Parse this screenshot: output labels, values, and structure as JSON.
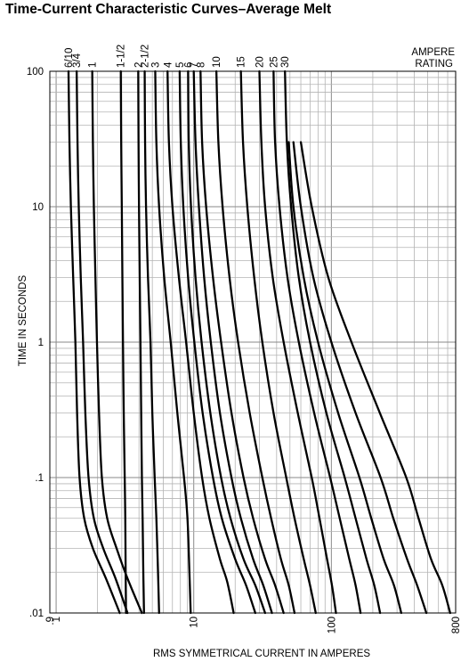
{
  "title": "Time-Current Characteristic Curves–Average Melt",
  "chart_data": {
    "type": "line",
    "title": "Time-Current Characteristic Curves–Average Melt",
    "xlabel": "RMS SYMMETRICAL CURRENT IN AMPERES",
    "ylabel": "TIME IN SECONDS",
    "legend_title": [
      "AMPERE",
      "RATING"
    ],
    "x_scale": "log",
    "y_scale": "log",
    "xlim": [
      0.9,
      800
    ],
    "ylim": [
      0.01,
      100
    ],
    "x_tick_labels": [
      {
        "value": 0.9,
        "label": ".9"
      },
      {
        "value": 1,
        "label": "1"
      },
      {
        "value": 10,
        "label": "10"
      },
      {
        "value": 100,
        "label": "100"
      },
      {
        "value": 800,
        "label": "800"
      }
    ],
    "y_tick_labels": [
      {
        "value": 100,
        "label": "100"
      },
      {
        "value": 10,
        "label": "10"
      },
      {
        "value": 1,
        "label": "1"
      },
      {
        "value": 0.1,
        "label": ".1"
      },
      {
        "value": 0.01,
        "label": ".01"
      }
    ],
    "grid": true,
    "series": [
      {
        "name": "6/10",
        "points": [
          [
            1.23,
            100
          ],
          [
            1.25,
            30
          ],
          [
            1.28,
            10
          ],
          [
            1.33,
            3
          ],
          [
            1.38,
            1
          ],
          [
            1.42,
            0.3
          ],
          [
            1.48,
            0.1
          ],
          [
            1.6,
            0.05
          ],
          [
            1.85,
            0.03
          ],
          [
            2.3,
            0.018
          ],
          [
            2.9,
            0.01
          ]
        ]
      },
      {
        "name": "3/4",
        "points": [
          [
            1.41,
            100
          ],
          [
            1.43,
            30
          ],
          [
            1.46,
            10
          ],
          [
            1.51,
            3
          ],
          [
            1.57,
            1
          ],
          [
            1.63,
            0.3
          ],
          [
            1.72,
            0.1
          ],
          [
            1.88,
            0.05
          ],
          [
            2.2,
            0.03
          ],
          [
            2.7,
            0.018
          ],
          [
            3.3,
            0.01
          ]
        ]
      },
      {
        "name": "1",
        "points": [
          [
            1.83,
            100
          ],
          [
            1.85,
            30
          ],
          [
            1.88,
            10
          ],
          [
            1.93,
            3
          ],
          [
            1.98,
            1
          ],
          [
            2.05,
            0.3
          ],
          [
            2.15,
            0.1
          ],
          [
            2.35,
            0.05
          ],
          [
            2.75,
            0.03
          ],
          [
            3.3,
            0.018
          ],
          [
            4.2,
            0.01
          ]
        ]
      },
      {
        "name": "1-1/2",
        "points": [
          [
            2.95,
            100
          ],
          [
            2.97,
            30
          ],
          [
            3.0,
            10
          ],
          [
            3.03,
            3
          ],
          [
            3.06,
            1
          ],
          [
            3.1,
            0.3
          ],
          [
            3.15,
            0.1
          ],
          [
            3.18,
            0.05
          ],
          [
            3.2,
            0.02
          ],
          [
            3.22,
            0.01
          ]
        ]
      },
      {
        "name": "2",
        "points": [
          [
            3.95,
            100
          ],
          [
            3.97,
            30
          ],
          [
            4.0,
            10
          ],
          [
            4.05,
            3
          ],
          [
            4.1,
            1
          ],
          [
            4.15,
            0.3
          ],
          [
            4.2,
            0.1
          ],
          [
            4.25,
            0.05
          ],
          [
            4.3,
            0.02
          ],
          [
            4.35,
            0.01
          ]
        ]
      },
      {
        "name": "2-1/2",
        "points": [
          [
            4.4,
            100
          ],
          [
            4.43,
            30
          ],
          [
            4.5,
            10
          ],
          [
            4.65,
            3
          ],
          [
            4.85,
            1
          ],
          [
            5.0,
            0.3
          ],
          [
            5.2,
            0.1
          ],
          [
            5.35,
            0.05
          ],
          [
            5.5,
            0.02
          ],
          [
            5.6,
            0.01
          ]
        ]
      },
      {
        "name": "3",
        "points": [
          [
            5.25,
            100
          ],
          [
            5.35,
            30
          ],
          [
            5.6,
            10
          ],
          [
            6.1,
            3
          ],
          [
            6.8,
            1
          ],
          [
            7.6,
            0.3
          ],
          [
            8.5,
            0.1
          ],
          [
            9.0,
            0.05
          ],
          [
            9.3,
            0.02
          ],
          [
            9.5,
            0.01
          ]
        ]
      },
      {
        "name": "4",
        "points": [
          [
            6.45,
            100
          ],
          [
            6.6,
            30
          ],
          [
            7.0,
            10
          ],
          [
            7.8,
            3
          ],
          [
            8.8,
            1
          ],
          [
            10.0,
            0.3
          ],
          [
            11.5,
            0.1
          ],
          [
            13.0,
            0.05
          ],
          [
            15.5,
            0.025
          ],
          [
            17.5,
            0.017
          ],
          [
            19.5,
            0.01
          ]
        ]
      },
      {
        "name": "5",
        "points": [
          [
            7.9,
            100
          ],
          [
            8.05,
            30
          ],
          [
            8.4,
            10
          ],
          [
            9.1,
            3
          ],
          [
            10.1,
            1
          ],
          [
            11.6,
            0.3
          ],
          [
            13.8,
            0.1
          ],
          [
            16.0,
            0.05
          ],
          [
            20.0,
            0.025
          ],
          [
            24.0,
            0.016
          ],
          [
            28.0,
            0.01
          ]
        ]
      },
      {
        "name": "6",
        "points": [
          [
            9.1,
            100
          ],
          [
            9.2,
            30
          ],
          [
            9.55,
            10
          ],
          [
            10.3,
            3
          ],
          [
            11.4,
            1
          ],
          [
            13.2,
            0.3
          ],
          [
            15.8,
            0.1
          ],
          [
            18.5,
            0.05
          ],
          [
            23.0,
            0.025
          ],
          [
            28.0,
            0.016
          ],
          [
            33.0,
            0.01
          ]
        ]
      },
      {
        "name": "7",
        "points": [
          [
            10.0,
            100
          ],
          [
            10.3,
            30
          ],
          [
            10.9,
            10
          ],
          [
            11.9,
            3
          ],
          [
            13.3,
            1
          ],
          [
            15.5,
            0.3
          ],
          [
            18.8,
            0.1
          ],
          [
            22.0,
            0.05
          ],
          [
            27.0,
            0.025
          ],
          [
            32.0,
            0.016
          ],
          [
            37.0,
            0.01
          ]
        ]
      },
      {
        "name": "8",
        "points": [
          [
            11.2,
            100
          ],
          [
            11.5,
            30
          ],
          [
            12.3,
            10
          ],
          [
            13.8,
            3
          ],
          [
            15.8,
            1
          ],
          [
            18.8,
            0.3
          ],
          [
            23.0,
            0.1
          ],
          [
            27.0,
            0.05
          ],
          [
            33.0,
            0.025
          ],
          [
            39.0,
            0.016
          ],
          [
            45.0,
            0.01
          ]
        ]
      },
      {
        "name": "10",
        "points": [
          [
            14.6,
            100
          ],
          [
            15.1,
            30
          ],
          [
            16.2,
            10
          ],
          [
            18.2,
            3
          ],
          [
            21.0,
            1
          ],
          [
            25.5,
            0.3
          ],
          [
            31.5,
            0.1
          ],
          [
            36.5,
            0.05
          ],
          [
            43.0,
            0.025
          ],
          [
            49.0,
            0.016
          ],
          [
            54.0,
            0.01
          ]
        ]
      },
      {
        "name": "15",
        "points": [
          [
            22.0,
            100
          ],
          [
            22.8,
            30
          ],
          [
            24.5,
            10
          ],
          [
            27.5,
            3
          ],
          [
            31.5,
            1
          ],
          [
            38.0,
            0.3
          ],
          [
            47.0,
            0.1
          ],
          [
            54.0,
            0.05
          ],
          [
            63.0,
            0.025
          ],
          [
            70.0,
            0.016
          ],
          [
            77.0,
            0.01
          ]
        ]
      },
      {
        "name": "20",
        "points": [
          [
            30.0,
            100
          ],
          [
            31.0,
            30
          ],
          [
            33.0,
            10
          ],
          [
            37.5,
            3
          ],
          [
            45.0,
            1
          ],
          [
            57.0,
            0.3
          ],
          [
            72.0,
            0.1
          ],
          [
            82.0,
            0.05
          ],
          [
            93.0,
            0.025
          ],
          [
            101.0,
            0.016
          ],
          [
            108.0,
            0.01
          ]
        ]
      },
      {
        "name": "25",
        "points": [
          [
            38.0,
            100
          ],
          [
            39.0,
            30
          ],
          [
            42.0,
            10
          ],
          [
            48.0,
            3
          ],
          [
            58.0,
            1
          ],
          [
            75.0,
            0.3
          ],
          [
            98.0,
            0.1
          ],
          [
            115.0,
            0.05
          ],
          [
            135.0,
            0.025
          ],
          [
            150.0,
            0.016
          ],
          [
            163.0,
            0.01
          ]
        ]
      },
      {
        "name": "30",
        "points": [
          [
            46.0,
            100
          ],
          [
            47.5,
            30
          ],
          [
            51.0,
            10
          ],
          [
            58.0,
            3
          ],
          [
            70.0,
            1
          ],
          [
            92.0,
            0.3
          ],
          [
            125.0,
            0.1
          ],
          [
            150.0,
            0.05
          ],
          [
            180.0,
            0.025
          ],
          [
            205.0,
            0.016
          ],
          [
            226.0,
            0.01
          ]
        ]
      },
      {
        "name": "",
        "points": [
          [
            49.0,
            30
          ],
          [
            53.0,
            10
          ],
          [
            63.0,
            3
          ],
          [
            80.0,
            1
          ],
          [
            112.0,
            0.3
          ],
          [
            160.0,
            0.1
          ],
          [
            195.0,
            0.05
          ],
          [
            240.0,
            0.025
          ],
          [
            285.0,
            0.016
          ],
          [
            322.0,
            0.01
          ]
        ]
      },
      {
        "name": "",
        "points": [
          [
            53.0,
            30
          ],
          [
            60.0,
            10
          ],
          [
            74.0,
            3
          ],
          [
            100.0,
            1
          ],
          [
            150.0,
            0.3
          ],
          [
            228.0,
            0.1
          ],
          [
            282.0,
            0.05
          ],
          [
            355.0,
            0.025
          ],
          [
            420.0,
            0.016
          ],
          [
            490.0,
            0.01
          ]
        ]
      },
      {
        "name": "",
        "points": [
          [
            60.0,
            30
          ],
          [
            72.0,
            10
          ],
          [
            95.0,
            3
          ],
          [
            140.0,
            1
          ],
          [
            225.0,
            0.3
          ],
          [
            350.0,
            0.1
          ],
          [
            430.0,
            0.05
          ],
          [
            530.0,
            0.025
          ],
          [
            640.0,
            0.016
          ],
          [
            730.0,
            0.01
          ]
        ]
      }
    ]
  }
}
